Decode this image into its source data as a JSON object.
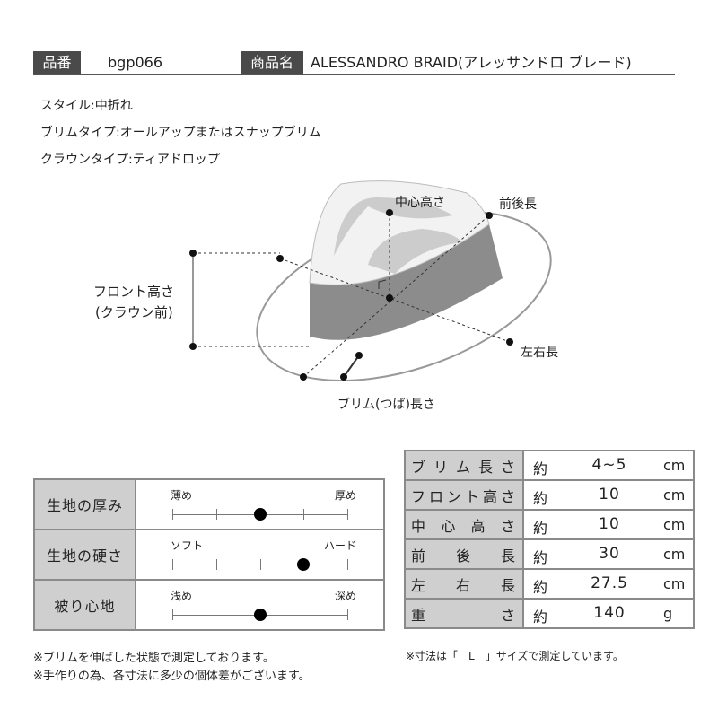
{
  "header": {
    "code_label": "品番",
    "code": "bgp066",
    "name_label": "商品名",
    "name": "ALESSANDRO BRAID(アレッサンドロ ブレード)"
  },
  "attributes": [
    "スタイル:中折れ",
    "ブリムタイプ:オールアップまたはスナップブリム",
    "クラウンタイプ:ティアドロップ"
  ],
  "diagram": {
    "center_height": "中心高さ",
    "front_back": "前後長",
    "front_height_1": "フロント高さ",
    "front_height_2": "(クラウン前)",
    "left_right": "左右長",
    "brim": "ブリム(つば)長さ"
  },
  "feel": [
    {
      "label": "生地の厚み",
      "left": "薄め",
      "right": "厚め",
      "level": 0.5,
      "ticks": true
    },
    {
      "label": "生地の硬さ",
      "left": "ソフト",
      "right": "ハード",
      "level": 0.75,
      "ticks": true
    },
    {
      "label": "被り心地",
      "left": "浅め",
      "right": "深め",
      "level": 0.5,
      "ticks": false
    }
  ],
  "sizes": [
    {
      "label": "ブリム長さ",
      "approx": "約",
      "value": "4~5",
      "unit": "cm"
    },
    {
      "label": "フロント高さ",
      "approx": "約",
      "value": "10",
      "unit": "cm"
    },
    {
      "label": "中心高さ",
      "approx": "約",
      "value": "10",
      "unit": "cm"
    },
    {
      "label": "前後長",
      "approx": "約",
      "value": "30",
      "unit": "cm"
    },
    {
      "label": "左右長",
      "approx": "約",
      "value": "27.5",
      "unit": "cm"
    },
    {
      "label": "重さ",
      "approx": "約",
      "value": "140",
      "unit": "g"
    }
  ],
  "notes_left": [
    "※ブリムを伸ばした状態で測定しております。",
    "※手作りの為、各寸法に多少の個体差がございます。"
  ],
  "note_right": "※寸法は「　L　」サイズで測定しています。"
}
